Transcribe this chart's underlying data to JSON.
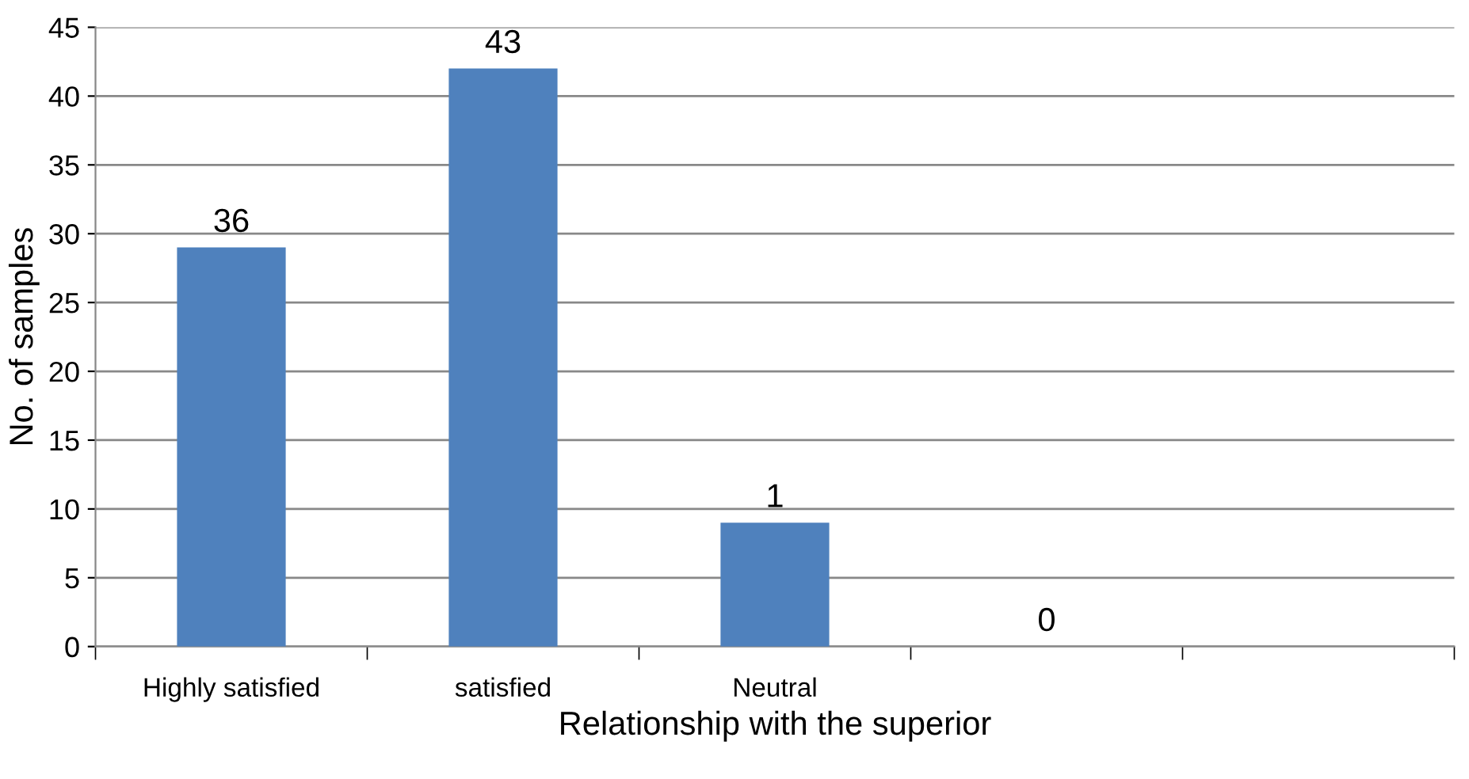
{
  "chart_data": {
    "type": "bar",
    "xlabel": "Relationship with the superior",
    "ylabel": "No. of samples",
    "categories": [
      "Highly satisfied",
      "satisfied",
      "Neutral",
      null,
      null
    ],
    "values": [
      29,
      42,
      9,
      0,
      null
    ],
    "annotations": [
      "36",
      "43",
      "1",
      "0"
    ],
    "color": "#4f81bd",
    "ylim": [
      0,
      45
    ],
    "yticks": [
      0,
      5,
      10,
      15,
      20,
      25,
      30,
      35,
      40,
      45
    ],
    "grid": "y",
    "legend": false
  }
}
